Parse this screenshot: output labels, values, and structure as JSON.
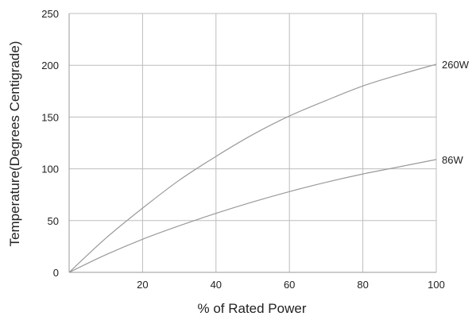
{
  "chart_data": {
    "type": "line",
    "xlabel": "% of Rated Power",
    "ylabel": "Temperature(Degrees Centigrade)",
    "xlim": [
      0,
      100
    ],
    "ylim": [
      0,
      250
    ],
    "xticks": [
      "20",
      "40",
      "60",
      "80",
      "100"
    ],
    "yticks": [
      "0",
      "50",
      "100",
      "150",
      "200",
      "250"
    ],
    "grid": true,
    "series": [
      {
        "name": "260W",
        "x": [
          0,
          10,
          20,
          30,
          40,
          50,
          60,
          70,
          80,
          90,
          100
        ],
        "y": [
          0,
          33,
          62,
          89,
          112,
          133,
          151,
          166,
          180,
          191,
          201
        ]
      },
      {
        "name": "86W",
        "x": [
          0,
          10,
          20,
          30,
          40,
          50,
          60,
          70,
          80,
          90,
          100
        ],
        "y": [
          0,
          17,
          32,
          45,
          57,
          68,
          78,
          87,
          95,
          102,
          109
        ]
      }
    ]
  },
  "colors": {
    "grid": "#bdbdbd",
    "axis": "#9a9a9a",
    "line": "#9a9a9a"
  }
}
